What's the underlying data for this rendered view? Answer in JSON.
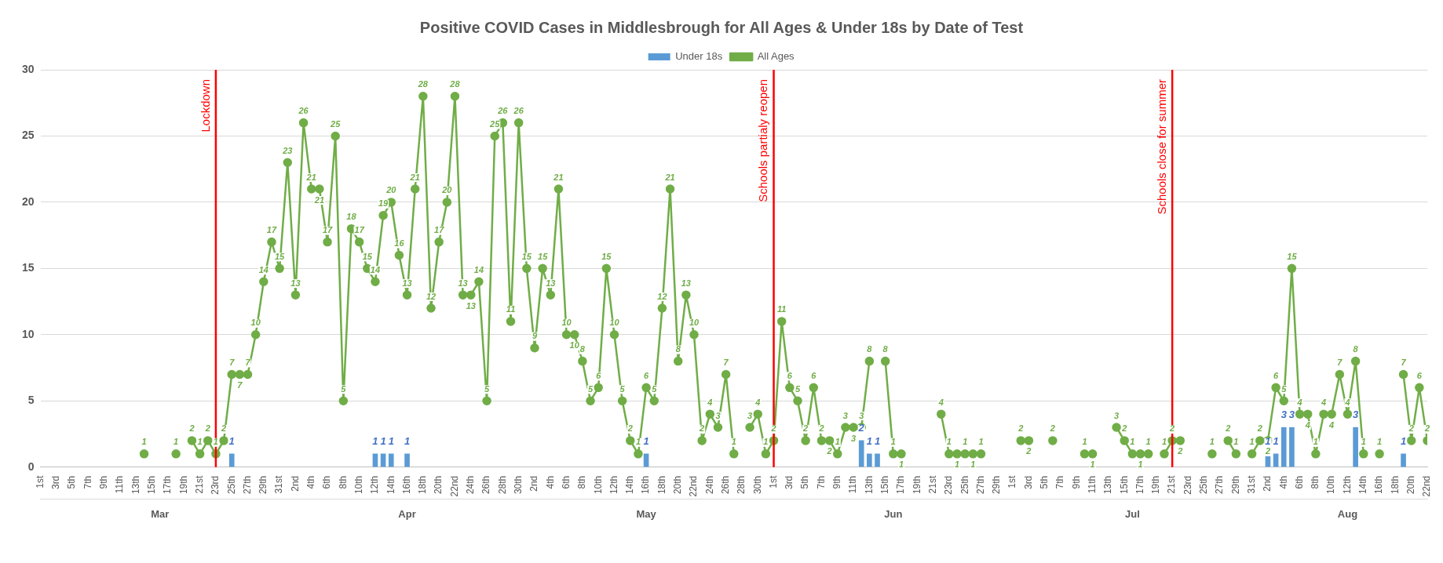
{
  "chart_data": {
    "type": "line",
    "title": "Positive COVID Cases in Middlesbrough for All Ages & Under 18s by Date of Test",
    "x": [
      "--03-14",
      "--03-15",
      "--03-16",
      "--03-17",
      "--03-18",
      "--03-19",
      "--03-20",
      "--03-21",
      "--03-22",
      "--03-23",
      "--03-24",
      "--03-25",
      "--03-26",
      "--03-27",
      "--03-28",
      "--03-29",
      "--03-30",
      "--03-31",
      "--04-01",
      "--04-02",
      "--04-03",
      "--04-04",
      "--04-05",
      "--04-06",
      "--04-07",
      "--04-08",
      "--04-09",
      "--04-10",
      "--04-11",
      "--04-12",
      "--04-13",
      "--04-14",
      "--04-15",
      "--04-16",
      "--04-17",
      "--04-18",
      "--04-19",
      "--04-20",
      "--04-21",
      "--04-22",
      "--04-23",
      "--04-24",
      "--04-25",
      "--04-26",
      "--04-27",
      "--04-28",
      "--04-29",
      "--04-30",
      "--05-01",
      "--05-02",
      "--05-03",
      "--05-04",
      "--05-05",
      "--05-06",
      "--05-07",
      "--05-08",
      "--05-09",
      "--05-10",
      "--05-11",
      "--05-12",
      "--05-13",
      "--05-14",
      "--05-15",
      "--05-16",
      "--05-17",
      "--05-18",
      "--05-19",
      "--05-20",
      "--05-21",
      "--05-22",
      "--05-23",
      "--05-24",
      "--05-25",
      "--05-26",
      "--05-27",
      "--05-28",
      "--05-29",
      "--05-30",
      "--05-31",
      "--06-01",
      "--06-02",
      "--06-03",
      "--06-04",
      "--06-05",
      "--06-06",
      "--06-07",
      "--06-08",
      "--06-09",
      "--06-10",
      "--06-11",
      "--06-12",
      "--06-13",
      "--06-14",
      "--06-15",
      "--06-16",
      "--06-17",
      "--06-18",
      "--06-19",
      "--06-20",
      "--06-21",
      "--06-22",
      "--06-23",
      "--06-24",
      "--06-25",
      "--06-26",
      "--06-27",
      "--06-28",
      "--06-29",
      "--06-30",
      "--07-01",
      "--07-02",
      "--07-03",
      "--07-04",
      "--07-05",
      "--07-06",
      "--07-07",
      "--07-08",
      "--07-09",
      "--07-10",
      "--07-11",
      "--07-12",
      "--07-13",
      "--07-14",
      "--07-15",
      "--07-16",
      "--07-17",
      "--07-18",
      "--07-19",
      "--07-20",
      "--07-21",
      "--07-22",
      "--07-23",
      "--07-24",
      "--07-25",
      "--07-26",
      "--07-27",
      "--07-28",
      "--07-29",
      "--07-30",
      "--07-31",
      "--08-01",
      "--08-02",
      "--08-03",
      "--08-04",
      "--08-05",
      "--08-06",
      "--08-07",
      "--08-08",
      "--08-09",
      "--08-10",
      "--08-11",
      "--08-12",
      "--08-13",
      "--08-14",
      "--08-15",
      "--08-16",
      "--08-17",
      "--08-18",
      "--08-19",
      "--08-20",
      "--08-21",
      "--08-22"
    ],
    "series": [
      {
        "name": "Under 18s",
        "type": "bar",
        "color": "#5b9bd5",
        "values": [
          null,
          null,
          null,
          null,
          null,
          null,
          null,
          null,
          null,
          null,
          null,
          1,
          null,
          null,
          null,
          null,
          null,
          null,
          null,
          null,
          null,
          null,
          null,
          null,
          null,
          null,
          null,
          null,
          null,
          1,
          1,
          1,
          null,
          1,
          null,
          null,
          null,
          null,
          null,
          null,
          null,
          null,
          null,
          null,
          null,
          null,
          null,
          null,
          null,
          null,
          null,
          null,
          null,
          null,
          null,
          null,
          null,
          null,
          null,
          null,
          null,
          null,
          null,
          1,
          null,
          null,
          null,
          null,
          null,
          null,
          null,
          null,
          null,
          null,
          null,
          null,
          null,
          null,
          null,
          null,
          null,
          null,
          null,
          null,
          null,
          null,
          null,
          null,
          null,
          null,
          2,
          1,
          1,
          null,
          null,
          null,
          null,
          null,
          null,
          null,
          null,
          null,
          null,
          null,
          null,
          null,
          null,
          null,
          null,
          null,
          null,
          null,
          null,
          null,
          null,
          null,
          null,
          null,
          null,
          null,
          null,
          null,
          null,
          null,
          null,
          null,
          null,
          null,
          null,
          null,
          null,
          null,
          null,
          null,
          null,
          null,
          null,
          null,
          null,
          null,
          null,
          1,
          1,
          3,
          3,
          null,
          null,
          null,
          null,
          null,
          null,
          null,
          3,
          null,
          null,
          null,
          null,
          null,
          1,
          null,
          null,
          null
        ]
      },
      {
        "name": "All Ages",
        "color": "#70ad47",
        "values": [
          1,
          null,
          null,
          null,
          1,
          null,
          2,
          1,
          2,
          1,
          2,
          7,
          7,
          7,
          10,
          14,
          17,
          15,
          23,
          13,
          26,
          21,
          21,
          17,
          25,
          5,
          18,
          17,
          15,
          14,
          19,
          20,
          16,
          13,
          21,
          28,
          12,
          17,
          20,
          28,
          13,
          13,
          14,
          5,
          25,
          26,
          11,
          26,
          15,
          9,
          15,
          13,
          21,
          10,
          10,
          8,
          5,
          6,
          15,
          10,
          5,
          2,
          1,
          6,
          5,
          12,
          21,
          8,
          13,
          10,
          2,
          4,
          3,
          7,
          1,
          null,
          3,
          4,
          1,
          2,
          11,
          6,
          5,
          2,
          6,
          2,
          2,
          1,
          3,
          3,
          3,
          8,
          null,
          8,
          1,
          1,
          null,
          null,
          null,
          null,
          4,
          1,
          1,
          1,
          1,
          1,
          null,
          null,
          null,
          null,
          2,
          2,
          null,
          null,
          2,
          null,
          null,
          null,
          1,
          1,
          null,
          null,
          3,
          2,
          1,
          1,
          1,
          null,
          1,
          2,
          2,
          null,
          null,
          null,
          1,
          null,
          2,
          1,
          null,
          1,
          2,
          2,
          6,
          5,
          15,
          4,
          4,
          1,
          4,
          4,
          7,
          4,
          8,
          1,
          null,
          1,
          null,
          null,
          7,
          2,
          6,
          2
        ]
      }
    ],
    "xlim": [
      "--03-01",
      "--08-22"
    ],
    "xticks": [
      {
        "value": "--03-01",
        "label": "1st"
      },
      {
        "value": "--03-03",
        "label": "3rd"
      },
      {
        "value": "--03-05",
        "label": "5th"
      },
      {
        "value": "--03-07",
        "label": "7th"
      },
      {
        "value": "--03-09",
        "label": "9th"
      },
      {
        "value": "--03-11",
        "label": "11th"
      },
      {
        "value": "--03-13",
        "label": "13th"
      },
      {
        "value": "--03-15",
        "label": "15th"
      },
      {
        "value": "--03-17",
        "label": "17th"
      },
      {
        "value": "--03-19",
        "label": "19th"
      },
      {
        "value": "--03-21",
        "label": "21st"
      },
      {
        "value": "--03-23",
        "label": "23rd"
      },
      {
        "value": "--03-25",
        "label": "25th"
      },
      {
        "value": "--03-27",
        "label": "27th"
      },
      {
        "value": "--03-29",
        "label": "29th"
      },
      {
        "value": "--03-31",
        "label": "31st"
      },
      {
        "value": "--04-02",
        "label": "2nd"
      },
      {
        "value": "--04-04",
        "label": "4th"
      },
      {
        "value": "--04-06",
        "label": "6th"
      },
      {
        "value": "--04-08",
        "label": "8th"
      },
      {
        "value": "--04-10",
        "label": "10th"
      },
      {
        "value": "--04-12",
        "label": "12th"
      },
      {
        "value": "--04-14",
        "label": "14th"
      },
      {
        "value": "--04-16",
        "label": "16th"
      },
      {
        "value": "--04-18",
        "label": "18th"
      },
      {
        "value": "--04-20",
        "label": "20th"
      },
      {
        "value": "--04-22",
        "label": "22nd"
      },
      {
        "value": "--04-24",
        "label": "24th"
      },
      {
        "value": "--04-26",
        "label": "26th"
      },
      {
        "value": "--04-28",
        "label": "28th"
      },
      {
        "value": "--04-30",
        "label": "30th"
      },
      {
        "value": "--05-02",
        "label": "2nd"
      },
      {
        "value": "--05-04",
        "label": "4th"
      },
      {
        "value": "--05-06",
        "label": "6th"
      },
      {
        "value": "--05-08",
        "label": "8th"
      },
      {
        "value": "--05-10",
        "label": "10th"
      },
      {
        "value": "--05-12",
        "label": "12th"
      },
      {
        "value": "--05-14",
        "label": "14th"
      },
      {
        "value": "--05-16",
        "label": "16th"
      },
      {
        "value": "--05-18",
        "label": "18th"
      },
      {
        "value": "--05-20",
        "label": "20th"
      },
      {
        "value": "--05-22",
        "label": "22nd"
      },
      {
        "value": "--05-24",
        "label": "24th"
      },
      {
        "value": "--05-26",
        "label": "26th"
      },
      {
        "value": "--05-28",
        "label": "28th"
      },
      {
        "value": "--05-30",
        "label": "30th"
      },
      {
        "value": "--06-01",
        "label": "1st"
      },
      {
        "value": "--06-03",
        "label": "3rd"
      },
      {
        "value": "--06-05",
        "label": "5th"
      },
      {
        "value": "--06-07",
        "label": "7th"
      },
      {
        "value": "--06-09",
        "label": "9th"
      },
      {
        "value": "--06-11",
        "label": "11th"
      },
      {
        "value": "--06-13",
        "label": "13th"
      },
      {
        "value": "--06-15",
        "label": "15th"
      },
      {
        "value": "--06-17",
        "label": "17th"
      },
      {
        "value": "--06-19",
        "label": "19th"
      },
      {
        "value": "--06-21",
        "label": "21st"
      },
      {
        "value": "--06-23",
        "label": "23rd"
      },
      {
        "value": "--06-25",
        "label": "25th"
      },
      {
        "value": "--06-27",
        "label": "27th"
      },
      {
        "value": "--06-29",
        "label": "29th"
      },
      {
        "value": "--07-01",
        "label": "1st"
      },
      {
        "value": "--07-03",
        "label": "3rd"
      },
      {
        "value": "--07-05",
        "label": "5th"
      },
      {
        "value": "--07-07",
        "label": "7th"
      },
      {
        "value": "--07-09",
        "label": "9th"
      },
      {
        "value": "--07-11",
        "label": "11th"
      },
      {
        "value": "--07-13",
        "label": "13th"
      },
      {
        "value": "--07-15",
        "label": "15th"
      },
      {
        "value": "--07-17",
        "label": "17th"
      },
      {
        "value": "--07-19",
        "label": "19th"
      },
      {
        "value": "--07-21",
        "label": "21st"
      },
      {
        "value": "--07-23",
        "label": "23rd"
      },
      {
        "value": "--07-25",
        "label": "25th"
      },
      {
        "value": "--07-27",
        "label": "27th"
      },
      {
        "value": "--07-29",
        "label": "29th"
      },
      {
        "value": "--07-31",
        "label": "31st"
      },
      {
        "value": "--08-02",
        "label": "2nd"
      },
      {
        "value": "--08-04",
        "label": "4th"
      },
      {
        "value": "--08-06",
        "label": "6th"
      },
      {
        "value": "--08-08",
        "label": "8th"
      },
      {
        "value": "--08-10",
        "label": "10th"
      },
      {
        "value": "--08-12",
        "label": "12th"
      },
      {
        "value": "--08-14",
        "label": "14th"
      },
      {
        "value": "--08-16",
        "label": "16th"
      },
      {
        "value": "--08-18",
        "label": "18th"
      },
      {
        "value": "--08-20",
        "label": "20th"
      },
      {
        "value": "--08-22",
        "label": "22nd"
      }
    ],
    "x2lim": [
      "--03-01",
      "--08-22"
    ],
    "x2ticks": [
      {
        "value": "--03-16",
        "label": "Mar"
      },
      {
        "value": "--04-16",
        "label": "Apr"
      },
      {
        "value": "--05-16",
        "label": "May"
      },
      {
        "value": "--06-16",
        "label": "Jun"
      },
      {
        "value": "--07-16",
        "label": "Jul"
      },
      {
        "value": "--08-12",
        "label": "Aug"
      }
    ],
    "ylim": [
      0,
      30
    ],
    "yticks": [
      0,
      5,
      10,
      15,
      20,
      25,
      30
    ],
    "grid": "y",
    "legend": "top",
    "marker": "circle",
    "data_labels": true,
    "ref_lines": [
      {
        "axis": "x",
        "value": "--03-23",
        "label": "Lockdown",
        "color": "#ff0000"
      },
      {
        "axis": "x",
        "value": "--06-01",
        "label": "Schools partialy reopen",
        "color": "#ff0000"
      },
      {
        "axis": "x",
        "value": "--07-21",
        "label": "Schools close for summer",
        "color": "#ff0000"
      }
    ]
  }
}
